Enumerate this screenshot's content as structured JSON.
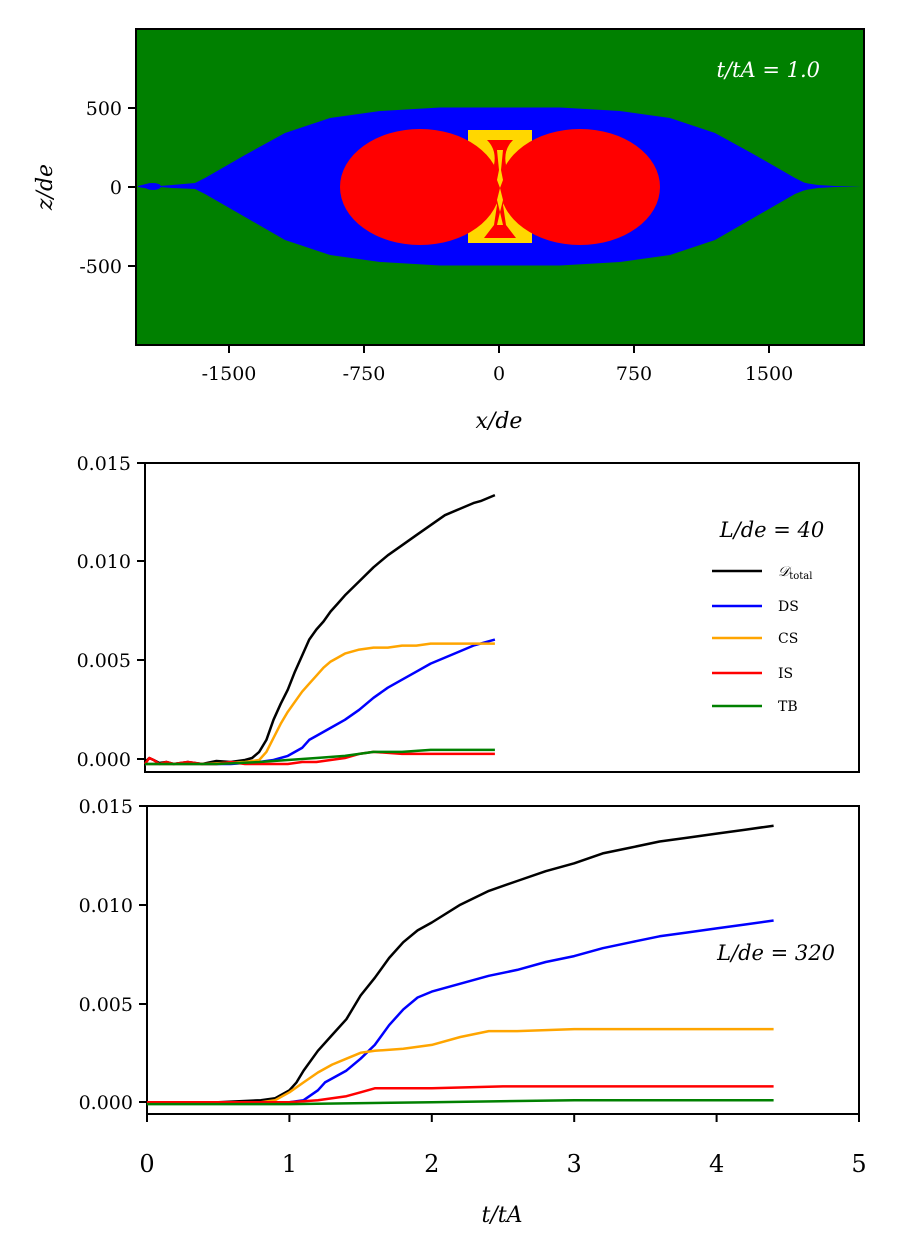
{
  "chart_data": [
    {
      "type": "heatmap",
      "panel": "top",
      "annotation": "t/tA = 1.0",
      "xlabel": "x/de",
      "ylabel": "z/de",
      "xlim": [
        -2000,
        2050
      ],
      "ylim": [
        -1000,
        1000
      ],
      "xticks": [
        -1500,
        -750,
        0,
        750,
        1500
      ],
      "xtick_labels": [
        "-1500",
        "-750",
        "0",
        "750",
        "1500"
      ],
      "yticks": [
        500,
        0,
        -500
      ],
      "ytick_labels": [
        "500",
        "0",
        "-500"
      ],
      "regions": [
        {
          "name": "background",
          "color": "#008000"
        },
        {
          "name": "envelope",
          "color": "#0000ff"
        },
        {
          "name": "islands",
          "color": "#ff0000"
        },
        {
          "name": "current-sheet",
          "color": "#ffd700"
        }
      ]
    },
    {
      "type": "line",
      "panel": "middle",
      "legend_title": "L/de = 40",
      "xlim": [
        0,
        5
      ],
      "ylim": [
        -0.0004,
        0.015
      ],
      "yticks": [
        0.0,
        0.005,
        0.01,
        0.015
      ],
      "ytick_labels": [
        "0.000",
        "0.005",
        "0.010",
        "0.015"
      ],
      "series": [
        {
          "name": "D_total",
          "legend": "𝒟",
          "legend_sub": "total",
          "color": "#000000",
          "x": [
            0,
            0.03,
            0.06,
            0.1,
            0.15,
            0.2,
            0.3,
            0.4,
            0.5,
            0.6,
            0.7,
            0.75,
            0.8,
            0.85,
            0.9,
            0.95,
            1.0,
            1.05,
            1.1,
            1.15,
            1.2,
            1.25,
            1.3,
            1.35,
            1.4,
            1.5,
            1.6,
            1.7,
            1.8,
            1.9,
            2.0,
            2.1,
            2.2,
            2.3,
            2.35,
            2.45
          ],
          "values": [
            0.0001,
            0.0003,
            0.0002,
            5e-05,
            0.0001,
            0.0,
            0.0001,
            0.0,
            0.00015,
            0.0001,
            0.0002,
            0.0003,
            0.0006,
            0.0012,
            0.0022,
            0.003,
            0.0037,
            0.0046,
            0.0054,
            0.0062,
            0.0067,
            0.0071,
            0.0076,
            0.008,
            0.0084,
            0.0091,
            0.0098,
            0.0104,
            0.0109,
            0.0114,
            0.0119,
            0.0124,
            0.0127,
            0.013,
            0.0131,
            0.0134
          ]
        },
        {
          "name": "DS",
          "legend": "DS",
          "color": "#0000ff",
          "x": [
            0,
            0.2,
            0.4,
            0.6,
            0.8,
            0.9,
            1.0,
            1.1,
            1.15,
            1.2,
            1.3,
            1.4,
            1.5,
            1.6,
            1.7,
            1.8,
            1.9,
            2.0,
            2.1,
            2.2,
            2.3,
            2.45
          ],
          "values": [
            0.0,
            0.0,
            0.0,
            0.0,
            0.0001,
            0.0002,
            0.0004,
            0.0008,
            0.0012,
            0.0014,
            0.0018,
            0.0022,
            0.0027,
            0.0033,
            0.0038,
            0.0042,
            0.0046,
            0.005,
            0.0053,
            0.0056,
            0.0059,
            0.0062
          ]
        },
        {
          "name": "CS",
          "legend": "CS",
          "color": "#ffa500",
          "x": [
            0,
            0.4,
            0.7,
            0.8,
            0.85,
            0.9,
            0.95,
            1.0,
            1.05,
            1.1,
            1.15,
            1.2,
            1.25,
            1.3,
            1.35,
            1.4,
            1.5,
            1.6,
            1.7,
            1.8,
            1.9,
            2.0,
            2.2,
            2.45
          ],
          "values": [
            0.0,
            0.0,
            0.0001,
            0.0002,
            0.0006,
            0.0013,
            0.002,
            0.0026,
            0.0031,
            0.0036,
            0.004,
            0.0044,
            0.0048,
            0.0051,
            0.0053,
            0.0055,
            0.0057,
            0.0058,
            0.0058,
            0.0059,
            0.0059,
            0.006,
            0.006,
            0.006
          ]
        },
        {
          "name": "IS",
          "legend": "IS",
          "color": "#ff0000",
          "x": [
            0,
            0.03,
            0.06,
            0.1,
            0.15,
            0.2,
            0.3,
            0.4,
            0.5,
            0.6,
            0.7,
            0.8,
            0.9,
            1.0,
            1.1,
            1.2,
            1.3,
            1.4,
            1.5,
            1.6,
            1.8,
            2.0,
            2.2,
            2.45
          ],
          "values": [
            0.0,
            0.0003,
            0.0002,
            0.0,
            0.0001,
            0.0,
            0.0001,
            0.0,
            0.0,
            0.0001,
            0.0,
            0.0,
            0.0,
            0.0,
            0.0001,
            0.0001,
            0.0002,
            0.0003,
            0.0005,
            0.0006,
            0.0005,
            0.0005,
            0.0005,
            0.0005
          ]
        },
        {
          "name": "TB",
          "legend": "TB",
          "color": "#008000",
          "x": [
            0,
            0.2,
            0.5,
            0.8,
            1.0,
            1.2,
            1.4,
            1.6,
            1.8,
            2.0,
            2.2,
            2.45
          ],
          "values": [
            0.0,
            0.0,
            0.0,
            0.0001,
            0.0002,
            0.0003,
            0.0004,
            0.0006,
            0.0006,
            0.0007,
            0.0007,
            0.0007
          ]
        }
      ]
    },
    {
      "type": "line",
      "panel": "bottom",
      "annotation": "L/de = 320",
      "xlabel": "t/tA",
      "xlim": [
        0,
        5
      ],
      "ylim": [
        -0.0006,
        0.015
      ],
      "xticks": [
        0,
        1,
        2,
        3,
        4,
        5
      ],
      "xtick_labels": [
        "0",
        "1",
        "2",
        "3",
        "4",
        "5"
      ],
      "yticks": [
        0.0,
        0.005,
        0.01,
        0.015
      ],
      "ytick_labels": [
        "0.000",
        "0.005",
        "0.010",
        "0.015"
      ],
      "series": [
        {
          "name": "D_total",
          "color": "#000000",
          "x": [
            0,
            0.5,
            0.8,
            0.9,
            1.0,
            1.05,
            1.1,
            1.2,
            1.3,
            1.4,
            1.45,
            1.5,
            1.6,
            1.7,
            1.8,
            1.9,
            2.0,
            2.2,
            2.4,
            2.6,
            2.8,
            3.0,
            3.2,
            3.4,
            3.6,
            3.8,
            4.0,
            4.2,
            4.4
          ],
          "values": [
            0.0,
            0.0,
            0.0001,
            0.0002,
            0.0006,
            0.001,
            0.0016,
            0.0026,
            0.0034,
            0.0042,
            0.0048,
            0.0054,
            0.0063,
            0.0073,
            0.0081,
            0.0087,
            0.0091,
            0.01,
            0.0107,
            0.0112,
            0.0117,
            0.0121,
            0.0126,
            0.0129,
            0.0132,
            0.0134,
            0.0136,
            0.0138,
            0.014
          ]
        },
        {
          "name": "DS",
          "color": "#0000ff",
          "x": [
            0,
            0.5,
            1.0,
            1.1,
            1.2,
            1.25,
            1.3,
            1.4,
            1.5,
            1.6,
            1.7,
            1.8,
            1.9,
            2.0,
            2.2,
            2.4,
            2.6,
            2.8,
            3.0,
            3.2,
            3.4,
            3.6,
            3.8,
            4.0,
            4.2,
            4.4
          ],
          "values": [
            0.0,
            0.0,
            0.0,
            0.0001,
            0.0006,
            0.001,
            0.0012,
            0.0016,
            0.0022,
            0.0029,
            0.0039,
            0.0047,
            0.0053,
            0.0056,
            0.006,
            0.0064,
            0.0067,
            0.0071,
            0.0074,
            0.0078,
            0.0081,
            0.0084,
            0.0086,
            0.0088,
            0.009,
            0.0092
          ]
        },
        {
          "name": "CS",
          "color": "#ffa500",
          "x": [
            0,
            0.5,
            0.8,
            0.9,
            1.0,
            1.1,
            1.2,
            1.3,
            1.4,
            1.5,
            1.6,
            1.8,
            2.0,
            2.2,
            2.4,
            2.6,
            3.0,
            3.5,
            4.0,
            4.4
          ],
          "values": [
            0.0,
            0.0,
            0.0,
            0.0001,
            0.0005,
            0.001,
            0.0015,
            0.0019,
            0.0022,
            0.0025,
            0.0026,
            0.0027,
            0.0029,
            0.0033,
            0.0036,
            0.0036,
            0.0037,
            0.0037,
            0.0037,
            0.0037
          ]
        },
        {
          "name": "IS",
          "color": "#ff0000",
          "x": [
            0,
            0.5,
            1.0,
            1.2,
            1.4,
            1.5,
            1.55,
            1.6,
            1.8,
            2.0,
            2.5,
            3.0,
            3.5,
            4.0,
            4.4
          ],
          "values": [
            0.0,
            0.0,
            0.0,
            0.0001,
            0.0003,
            0.0005,
            0.0006,
            0.0007,
            0.0007,
            0.0007,
            0.0008,
            0.0008,
            0.0008,
            0.0008,
            0.0008
          ]
        },
        {
          "name": "TB",
          "color": "#008000",
          "x": [
            0,
            1.0,
            2.0,
            3.0,
            4.0,
            4.4
          ],
          "values": [
            -0.0001,
            -0.0001,
            0.0,
            0.0001,
            0.0001,
            0.0001
          ]
        }
      ]
    }
  ]
}
